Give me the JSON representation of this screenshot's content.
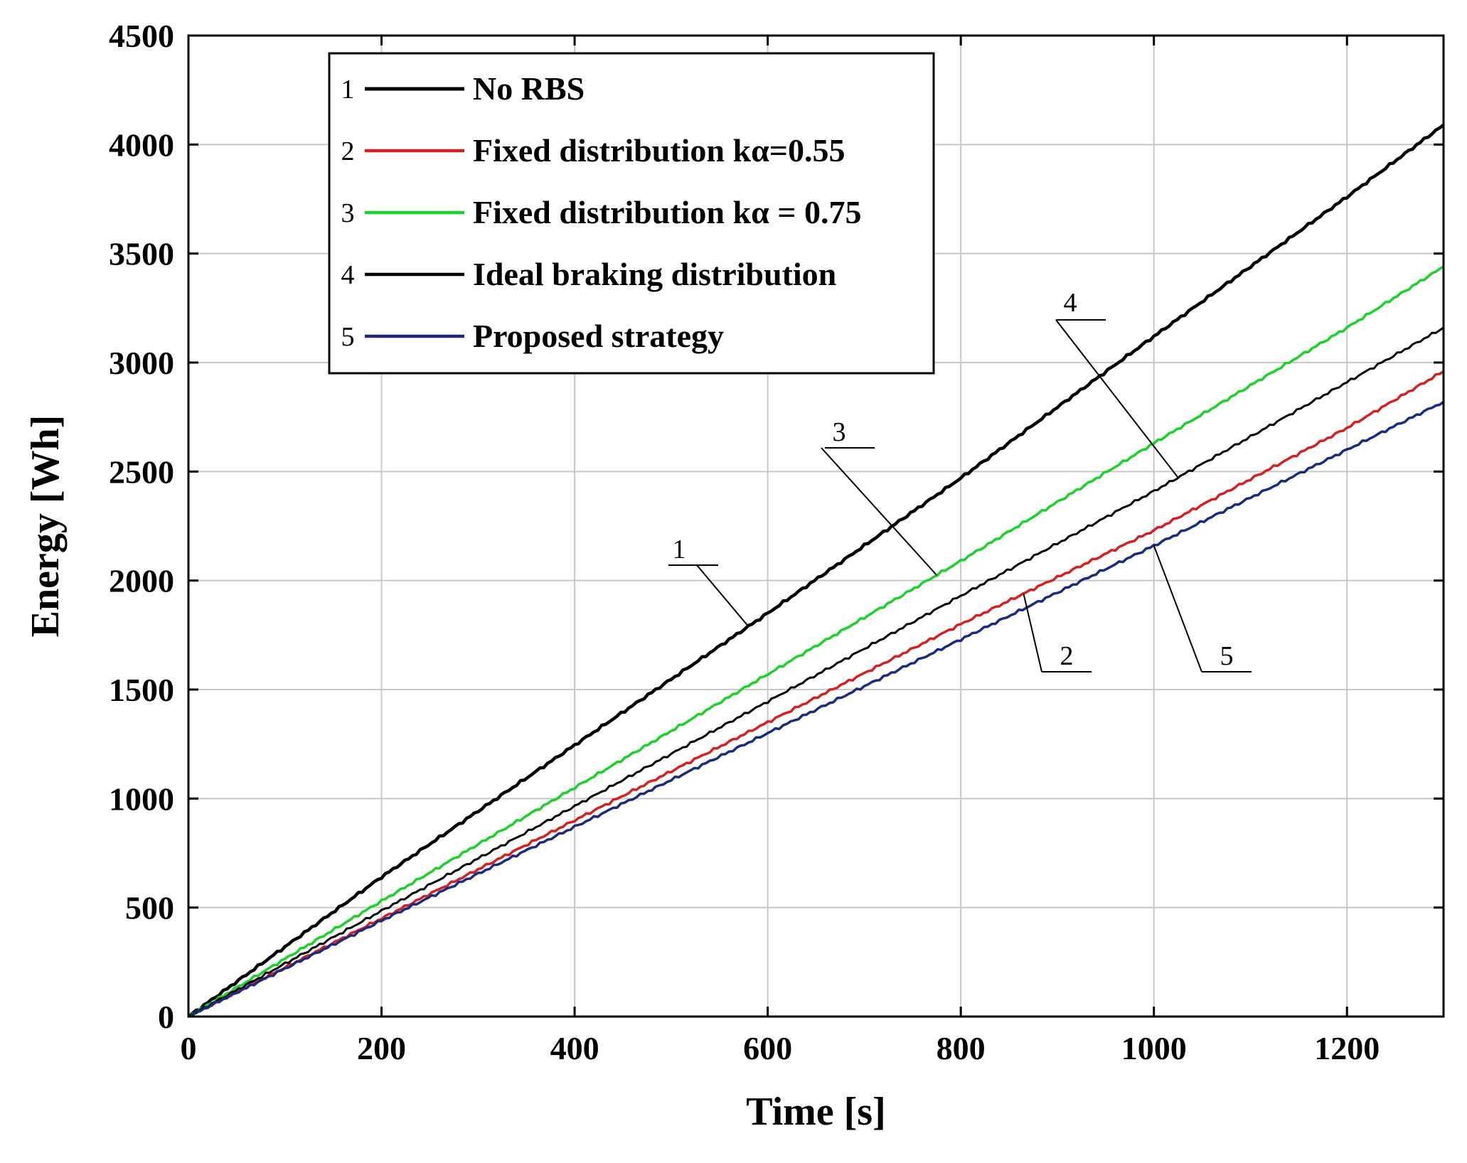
{
  "chart_data": {
    "type": "line",
    "title": "",
    "xlabel": "Time [s]",
    "ylabel": "Energy [Wh]",
    "xlim": [
      0,
      1300
    ],
    "ylim": [
      0,
      4500
    ],
    "grid": true,
    "legend_position": "top-left",
    "xticks": [
      0,
      200,
      400,
      600,
      800,
      1000,
      1200
    ],
    "yticks": [
      0,
      500,
      1000,
      1500,
      2000,
      2500,
      3000,
      3500,
      4000,
      4500
    ],
    "x": [
      0,
      200,
      400,
      600,
      800,
      1000,
      1200,
      1300
    ],
    "series": [
      {
        "id": "1",
        "name": "No RBS",
        "color": "#000000",
        "values": [
          0,
          640,
          1245,
          1850,
          2470,
          3120,
          3760,
          4090
        ]
      },
      {
        "id": "2",
        "name": "Fixed distribution kα=0.55",
        "color": "#d42020",
        "values": [
          0,
          450,
          900,
          1350,
          1800,
          2230,
          2700,
          2960
        ]
      },
      {
        "id": "3",
        "name": "Fixed distribution kα = 0.75",
        "color": "#1bd12a",
        "values": [
          0,
          530,
          1050,
          1570,
          2090,
          2630,
          3160,
          3440
        ]
      },
      {
        "id": "4",
        "name": "Ideal braking distribution",
        "color": "#000000",
        "values": [
          0,
          485,
          965,
          1445,
          1930,
          2410,
          2910,
          3160
        ]
      },
      {
        "id": "5",
        "name": "Proposed strategy",
        "color": "#1a2a80",
        "values": [
          0,
          440,
          870,
          1300,
          1730,
          2160,
          2600,
          2820
        ]
      }
    ],
    "annotations": [
      {
        "label": "1",
        "series": "1",
        "x": 580
      },
      {
        "label": "3",
        "series": "3",
        "x": 775
      },
      {
        "label": "4",
        "series": "4",
        "x": 1025
      },
      {
        "label": "2",
        "series": "2",
        "x": 865
      },
      {
        "label": "5",
        "series": "5",
        "x": 1000
      }
    ]
  }
}
